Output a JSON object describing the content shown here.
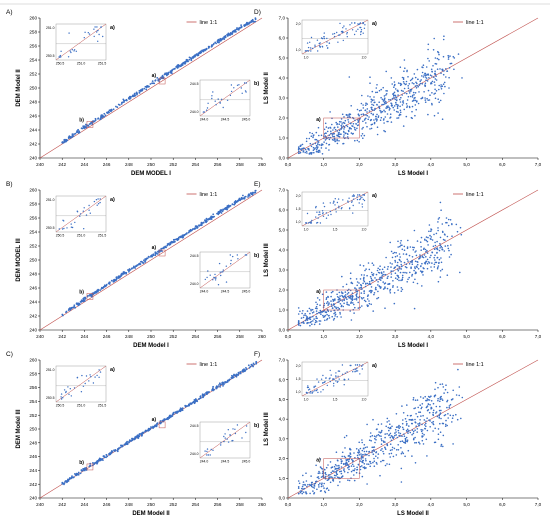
{
  "chart_data": [
    {
      "id": "A",
      "panel_label": "A)",
      "type": "scatter",
      "xlabel": "DEM MODEL I",
      "ylabel": "DEM Model II",
      "xlim": [
        240,
        260
      ],
      "ylim": [
        240,
        260
      ],
      "xticks": [
        "240",
        "242",
        "244",
        "246",
        "248",
        "250",
        "252",
        "254",
        "256",
        "258",
        "260"
      ],
      "yticks": [
        "240",
        "242",
        "244",
        "246",
        "248",
        "250",
        "252",
        "254",
        "256",
        "258",
        "260"
      ],
      "legend": "line 1:1",
      "series": [
        {
          "values_desc": "",
          "x": [
            242,
            244,
            246,
            248,
            250,
            252,
            254,
            256,
            258,
            259.5
          ],
          "y": [
            242.2,
            244.4,
            246.4,
            248.5,
            250.5,
            252.6,
            254.6,
            256.6,
            258.6,
            259.8
          ]
        }
      ],
      "annotations": [
        "a)",
        "b)"
      ],
      "insets": [
        {
          "label": "a)",
          "xticks": [
            "250.5",
            "251.0",
            "251.5"
          ],
          "yticks": [
            "250.5",
            "251.0"
          ]
        },
        {
          "label": "b)",
          "xticks": [
            "244.0",
            "244.5",
            "245.0"
          ],
          "yticks": [
            "244.0",
            "244.5"
          ]
        }
      ]
    },
    {
      "id": "B",
      "panel_label": "B)",
      "type": "scatter",
      "xlabel": "DEM Model I",
      "ylabel": "DEM MODEL III",
      "xlim": [
        240,
        260
      ],
      "ylim": [
        240,
        260
      ],
      "xticks": [
        "240",
        "242",
        "244",
        "246",
        "248",
        "250",
        "252",
        "254",
        "256",
        "258",
        "260"
      ],
      "yticks": [
        "240",
        "242",
        "244",
        "246",
        "248",
        "250",
        "252",
        "254",
        "256",
        "258",
        "260"
      ],
      "legend": "line 1:1",
      "series": [
        {
          "x": [
            242,
            244,
            246,
            248,
            250,
            252,
            254,
            256,
            258,
            259.5
          ],
          "y": [
            242.2,
            244.4,
            246.4,
            248.5,
            250.5,
            252.6,
            254.6,
            256.6,
            258.6,
            259.8
          ]
        }
      ],
      "annotations": [
        "a)",
        "b)"
      ],
      "insets": [
        {
          "label": "a)",
          "xticks": [
            "250.5",
            "251.0",
            "251.5"
          ],
          "yticks": [
            "250.5",
            "251.0"
          ]
        },
        {
          "label": "b)",
          "xticks": [
            "244.0",
            "244.5",
            "245.0"
          ],
          "yticks": [
            "244.0",
            "244.5"
          ]
        }
      ]
    },
    {
      "id": "C",
      "panel_label": "C)",
      "type": "scatter",
      "xlabel": "DEM Model II",
      "ylabel": "DEM Model III",
      "xlim": [
        240,
        260
      ],
      "ylim": [
        240,
        260
      ],
      "xticks": [
        "240",
        "242",
        "244",
        "246",
        "248",
        "250",
        "252",
        "254",
        "256",
        "258",
        "260"
      ],
      "yticks": [
        "240",
        "242",
        "244",
        "246",
        "248",
        "250",
        "252",
        "254",
        "256",
        "258",
        "260"
      ],
      "legend": "line 1:1",
      "series": [
        {
          "x": [
            242,
            244,
            246,
            248,
            250,
            252,
            254,
            256,
            258,
            259.5
          ],
          "y": [
            242.1,
            244.1,
            246.1,
            248.1,
            250.1,
            252.1,
            254.1,
            256.1,
            258.1,
            259.6
          ]
        }
      ],
      "annotations": [
        "a)",
        "b)"
      ],
      "insets": [
        {
          "label": "a)",
          "xticks": [
            "250.5",
            "251.0",
            "251.5"
          ],
          "yticks": [
            "250.5",
            "251.0"
          ]
        },
        {
          "label": "b)",
          "xticks": [
            "244.0",
            "244.5",
            "245.0"
          ],
          "yticks": [
            "244.0",
            "244.5"
          ]
        }
      ]
    },
    {
      "id": "D",
      "panel_label": "D)",
      "type": "scatter",
      "xlabel": "LS Model I",
      "ylabel": "LS Model II",
      "xlim": [
        0,
        7
      ],
      "ylim": [
        0,
        7
      ],
      "xticks": [
        "0,0",
        "1,0",
        "2,0",
        "3,0",
        "4,0",
        "5,0",
        "6,0",
        "7,0"
      ],
      "yticks": [
        "0,0",
        "1,0",
        "2,0",
        "3,0",
        "4,0",
        "5,0",
        "6,0",
        "7,0"
      ],
      "legend": "line 1:1",
      "annotations": [
        "a)"
      ],
      "insets": [
        {
          "label": "a)",
          "xticks": [
            "1,0",
            "2,0"
          ],
          "yticks": [
            "1,0",
            "2,0"
          ]
        }
      ]
    },
    {
      "id": "E",
      "panel_label": "E)",
      "type": "scatter",
      "xlabel": "LS Model I",
      "ylabel": "LS Model III",
      "xlim": [
        0,
        7
      ],
      "ylim": [
        0,
        7
      ],
      "xticks": [
        "0,0",
        "1,0",
        "2,0",
        "3,0",
        "4,0",
        "5,0",
        "6,0",
        "7,0"
      ],
      "yticks": [
        "0,0",
        "1,0",
        "2,0",
        "3,0",
        "4,0",
        "5,0",
        "6,0",
        "7,0"
      ],
      "legend": "line 1:1",
      "annotations": [
        "a)"
      ],
      "insets": [
        {
          "label": "a)",
          "xticks": [
            "1,0",
            "1,5",
            "2,0"
          ],
          "yticks": [
            "1,0",
            "1,5",
            "2,0"
          ]
        }
      ]
    },
    {
      "id": "F",
      "panel_label": "F)",
      "type": "scatter",
      "xlabel": "LS Model II",
      "ylabel": "LS Model III",
      "xlim": [
        0,
        7
      ],
      "ylim": [
        0,
        7
      ],
      "xticks": [
        "0,0",
        "1,0",
        "2,0",
        "3,0",
        "4,0",
        "5,0",
        "6,0",
        "7,0"
      ],
      "yticks": [
        "0,0",
        "1,0",
        "2,0",
        "3,0",
        "4,0",
        "5,0",
        "6,0",
        "7,0"
      ],
      "legend": "line 1:1",
      "annotations": [
        "a)"
      ],
      "insets": [
        {
          "label": "a)",
          "xticks": [
            "1,0",
            "1,5",
            "2,0"
          ],
          "yticks": [
            "1,0",
            "1,5",
            "2,0"
          ]
        }
      ]
    }
  ],
  "colors": {
    "points": "#3b6fc4",
    "line": "#c0504d",
    "axis": "#000000",
    "grid": "#d9d9d9"
  }
}
